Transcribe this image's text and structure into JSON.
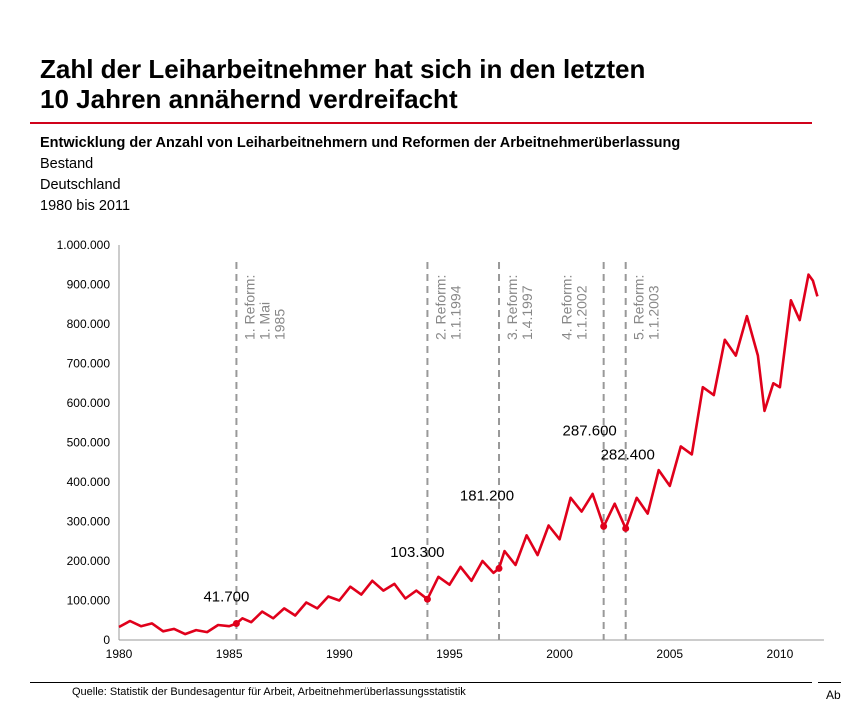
{
  "header": {
    "title_line1": "Zahl der Leiharbeitnehmer hat sich in den letzten",
    "title_line2": "10 Jahren annähernd verdreifacht"
  },
  "subtitle": {
    "main": "Entwicklung der Anzahl von Leiharbeitnehmern und Reformen der Arbeitnehmerüberlassung",
    "line2": "Bestand",
    "line3": "Deutschland",
    "line4": "1980 bis 2011"
  },
  "footer": {
    "source": "Quelle: Statistik der Bundesagentur für Arbeit, Arbeitnehmerüberlassungsstatistik",
    "cut_text": "Ab"
  },
  "colors": {
    "series": "#e0001b",
    "accent_rule": "#d0021b",
    "reform_line": "#999999"
  },
  "chart_data": {
    "type": "line",
    "xlim": [
      1980,
      2012
    ],
    "ylim": [
      0,
      1000000
    ],
    "x_ticks": [
      "1980",
      "1985",
      "1990",
      "1995",
      "2000",
      "2005",
      "2010"
    ],
    "y_ticks": [
      "0",
      "100.000",
      "200.000",
      "300.000",
      "400.000",
      "500.000",
      "600.000",
      "700.000",
      "800.000",
      "900.000",
      "1.000.000"
    ],
    "grid": false,
    "series": [
      {
        "x": [
          1980,
          1980.5,
          1981,
          1981.5,
          1982,
          1982.5,
          1983,
          1983.5,
          1984,
          1984.5,
          1985,
          1985.33,
          1985.6,
          1986,
          1986.5,
          1987,
          1987.5,
          1988,
          1988.5,
          1989,
          1989.5,
          1990,
          1990.5,
          1991,
          1991.5,
          1992,
          1992.5,
          1993,
          1993.5,
          1994,
          1994.5,
          1995,
          1995.5,
          1996,
          1996.5,
          1997,
          1997.25,
          1997.5,
          1998,
          1998.5,
          1999,
          1999.5,
          2000,
          2000.5,
          2001,
          2001.5,
          2002,
          2002.5,
          2003,
          2003.5,
          2004,
          2004.5,
          2005,
          2005.5,
          2006,
          2006.5,
          2007,
          2007.5,
          2008,
          2008.5,
          2009,
          2009.3,
          2009.7,
          2010,
          2010.5,
          2010.9,
          2011.3,
          2011.5,
          2011.7
        ],
        "values": [
          33000,
          48000,
          35000,
          42000,
          22000,
          28000,
          15000,
          25000,
          20000,
          38000,
          35000,
          41700,
          55000,
          45000,
          72000,
          55000,
          80000,
          62000,
          95000,
          80000,
          110000,
          100000,
          135000,
          115000,
          150000,
          125000,
          142000,
          105000,
          125000,
          103300,
          160000,
          140000,
          185000,
          150000,
          200000,
          170000,
          181200,
          225000,
          190000,
          265000,
          215000,
          290000,
          255000,
          360000,
          325000,
          370000,
          287600,
          345000,
          282400,
          360000,
          320000,
          430000,
          390000,
          490000,
          470000,
          640000,
          620000,
          760000,
          720000,
          820000,
          720000,
          580000,
          650000,
          640000,
          860000,
          810000,
          925000,
          910000,
          870000
        ]
      }
    ],
    "annotations": [
      {
        "x": 1985.33,
        "value": 41700,
        "label": "41.700"
      },
      {
        "x": 1994,
        "value": 103300,
        "label": "103.300"
      },
      {
        "x": 1997.25,
        "value": 181200,
        "label": "181.200"
      },
      {
        "x": 2002,
        "value": 287600,
        "label": "287.600"
      },
      {
        "x": 2003,
        "value": 282400,
        "label": "282.400"
      }
    ],
    "reforms": [
      {
        "x": 1985.33,
        "lines": [
          "1. Reform:",
          "1. Mai",
          "1985"
        ]
      },
      {
        "x": 1994,
        "lines": [
          "2. Reform:",
          "1.1.1994"
        ]
      },
      {
        "x": 1997.25,
        "lines": [
          "3. Reform:",
          "1.4.1997"
        ]
      },
      {
        "x": 2002,
        "lines": [
          "4. Reform:",
          "1.1.2002"
        ]
      },
      {
        "x": 2003,
        "lines": [
          "5. Reform:",
          "1.1.2003"
        ]
      }
    ]
  }
}
